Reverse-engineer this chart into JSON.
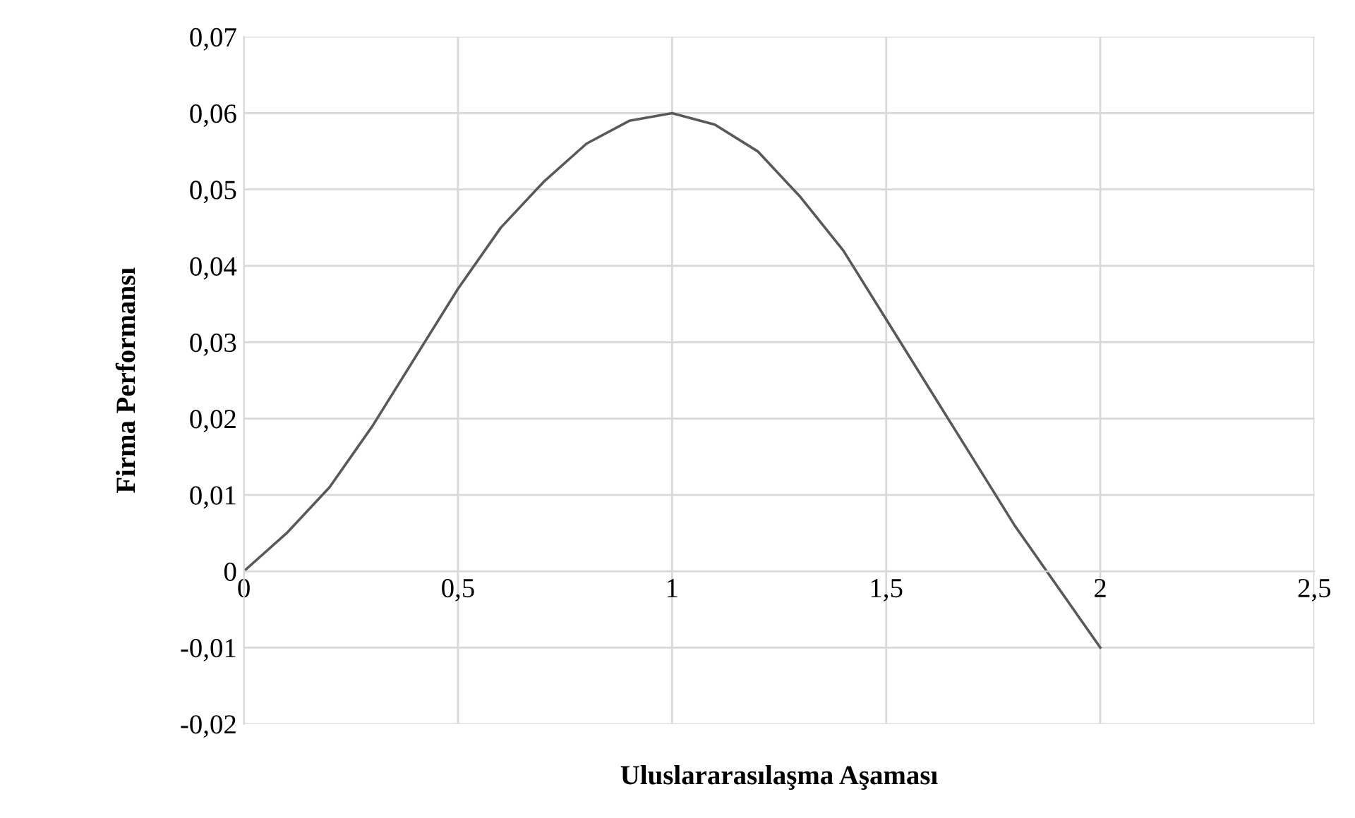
{
  "chart_data": {
    "type": "line",
    "xlabel": "Uluslararasılaşma Aşaması",
    "ylabel": "Firma Performansı",
    "x": [
      0,
      0.1,
      0.2,
      0.3,
      0.4,
      0.5,
      0.6,
      0.7,
      0.8,
      0.9,
      1.0,
      1.1,
      1.2,
      1.3,
      1.4,
      1.5,
      1.6,
      1.7,
      1.8,
      1.9,
      2.0
    ],
    "series": [
      {
        "color": "#595959",
        "values": [
          0,
          0.005,
          0.011,
          0.019,
          0.028,
          0.037,
          0.045,
          0.051,
          0.056,
          0.059,
          0.06,
          0.0585,
          0.055,
          0.049,
          0.042,
          0.033,
          0.024,
          0.015,
          0.006,
          -0.002,
          -0.01
        ]
      }
    ],
    "xlim": [
      0,
      2.5
    ],
    "ylim": [
      -0.02,
      0.07
    ],
    "xticks": [
      0,
      {
        "value": 0.5,
        "label": "0,5"
      },
      1,
      {
        "value": 1.5,
        "label": "1,5"
      },
      2,
      {
        "value": 2.5,
        "label": "2,5"
      }
    ],
    "yticks": [
      {
        "value": -0.02,
        "label": "-0,02"
      },
      {
        "value": -0.01,
        "label": "-0,01"
      },
      0,
      {
        "value": 0.01,
        "label": "0,01"
      },
      {
        "value": 0.02,
        "label": "0,02"
      },
      {
        "value": 0.03,
        "label": "0,03"
      },
      {
        "value": 0.04,
        "label": "0,04"
      },
      {
        "value": 0.05,
        "label": "0,05"
      },
      {
        "value": 0.06,
        "label": "0,06"
      },
      {
        "value": 0.07,
        "label": "0,07"
      }
    ],
    "grid": true,
    "marker": "none",
    "line_style": "solid"
  }
}
